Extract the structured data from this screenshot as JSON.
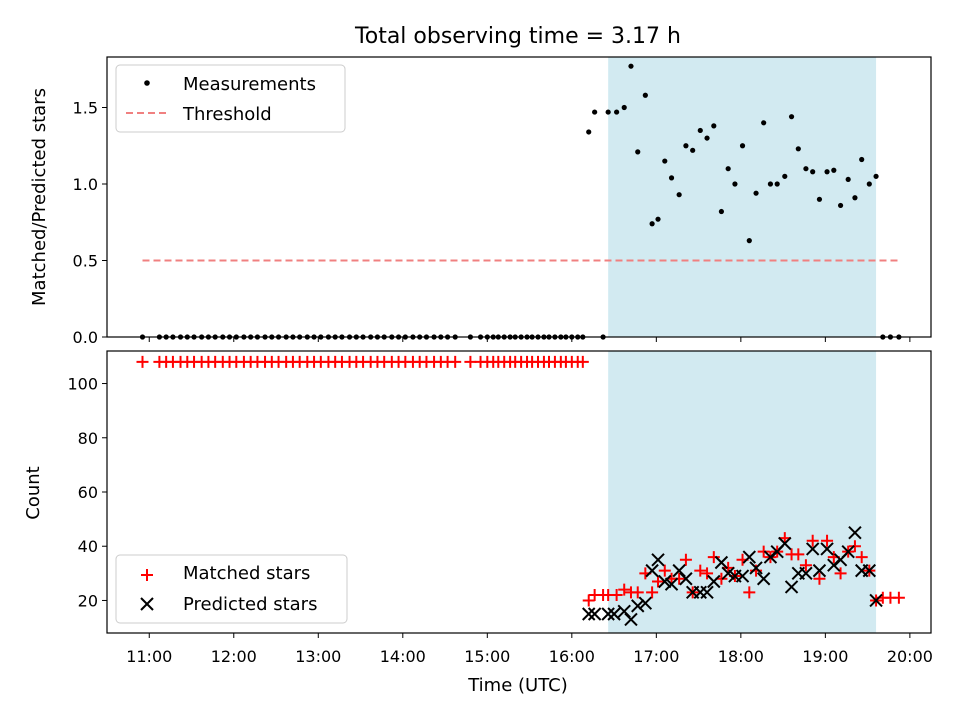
{
  "chart_data": [
    {
      "type": "scatter",
      "title": "Total observing time = 3.17 h",
      "xlabel": "",
      "ylabel": "Matched/Predicted stars",
      "xlim_hours": [
        10.5,
        20.25
      ],
      "ylim": [
        0,
        1.83
      ],
      "yticks": [
        "0.0",
        "0.5",
        "1.0",
        "1.5"
      ],
      "ytick_values": [
        0,
        0.5,
        1.0,
        1.5
      ],
      "shaded_span_hours": [
        16.43,
        19.6
      ],
      "legend_position": "upper-left",
      "series": [
        {
          "name": "Measurements",
          "color": "#000000",
          "marker": "dot",
          "x_hours": [
            10.92,
            11.12,
            11.2,
            11.28,
            11.37,
            11.45,
            11.53,
            11.62,
            11.7,
            11.78,
            11.87,
            11.95,
            12.03,
            12.12,
            12.2,
            12.28,
            12.37,
            12.45,
            12.53,
            12.62,
            12.7,
            12.78,
            12.87,
            12.95,
            13.03,
            13.12,
            13.2,
            13.28,
            13.37,
            13.45,
            13.53,
            13.62,
            13.7,
            13.78,
            13.87,
            13.95,
            14.03,
            14.12,
            14.2,
            14.28,
            14.37,
            14.45,
            14.53,
            14.62,
            14.8,
            14.92,
            15.0,
            15.07,
            15.13,
            15.2,
            15.27,
            15.33,
            15.4,
            15.47,
            15.53,
            15.6,
            15.67,
            15.73,
            15.8,
            15.87,
            15.93,
            16.0,
            16.07,
            16.13,
            16.2,
            16.27,
            16.37,
            16.43,
            16.53,
            16.62,
            16.7,
            16.78,
            16.87,
            16.95,
            17.02,
            17.1,
            17.18,
            17.27,
            17.35,
            17.43,
            17.52,
            17.6,
            17.68,
            17.77,
            17.85,
            17.93,
            18.02,
            18.1,
            18.18,
            18.27,
            18.35,
            18.43,
            18.52,
            18.6,
            18.68,
            18.77,
            18.85,
            18.93,
            19.02,
            19.1,
            19.18,
            19.27,
            19.35,
            19.43,
            19.52,
            19.6,
            19.68,
            19.77,
            19.87
          ],
          "y": [
            0,
            0,
            0,
            0,
            0,
            0,
            0,
            0,
            0,
            0,
            0,
            0,
            0,
            0,
            0,
            0,
            0,
            0,
            0,
            0,
            0,
            0,
            0,
            0,
            0,
            0,
            0,
            0,
            0,
            0,
            0,
            0,
            0,
            0,
            0,
            0,
            0,
            0,
            0,
            0,
            0,
            0,
            0,
            0,
            0,
            0,
            0,
            0,
            0,
            0,
            0,
            0,
            0,
            0,
            0,
            0,
            0,
            0,
            0,
            0,
            0,
            0,
            0,
            0,
            1.34,
            1.47,
            0,
            1.47,
            1.47,
            1.5,
            1.77,
            1.21,
            1.58,
            0.74,
            0.77,
            1.15,
            1.04,
            0.93,
            1.25,
            1.22,
            1.35,
            1.3,
            1.38,
            0.82,
            1.1,
            1.0,
            1.25,
            0.63,
            0.94,
            1.4,
            1.0,
            1.0,
            1.05,
            1.44,
            1.23,
            1.1,
            1.08,
            0.9,
            1.08,
            1.09,
            0.86,
            1.03,
            0.91,
            1.16,
            1.0,
            1.05,
            0,
            0,
            0
          ]
        },
        {
          "name": "Threshold",
          "color": "#f08080",
          "style": "dashed",
          "x_hours": [
            10.92,
            19.87
          ],
          "y": [
            0.5,
            0.5
          ]
        }
      ]
    },
    {
      "type": "scatter",
      "title": "",
      "xlabel": "Time (UTC)",
      "ylabel": "Count",
      "xlim_hours": [
        10.5,
        20.25
      ],
      "ylim": [
        8,
        112
      ],
      "yticks": [
        "20",
        "40",
        "60",
        "80",
        "100"
      ],
      "ytick_values": [
        20,
        40,
        60,
        80,
        100
      ],
      "xticks": [
        "11:00",
        "12:00",
        "13:00",
        "14:00",
        "15:00",
        "16:00",
        "17:00",
        "18:00",
        "19:00",
        "20:00"
      ],
      "xtick_values_hours": [
        11,
        12,
        13,
        14,
        15,
        16,
        17,
        18,
        19,
        20
      ],
      "shaded_span_hours": [
        16.43,
        19.6
      ],
      "legend_position": "lower-left",
      "series": [
        {
          "name": "Matched stars",
          "color": "#ff0000",
          "marker": "plus",
          "x_hours": [
            10.92,
            11.12,
            11.2,
            11.28,
            11.37,
            11.45,
            11.53,
            11.62,
            11.7,
            11.78,
            11.87,
            11.95,
            12.03,
            12.12,
            12.2,
            12.28,
            12.37,
            12.45,
            12.53,
            12.62,
            12.7,
            12.78,
            12.87,
            12.95,
            13.03,
            13.12,
            13.2,
            13.28,
            13.37,
            13.45,
            13.53,
            13.62,
            13.7,
            13.78,
            13.87,
            13.95,
            14.03,
            14.12,
            14.2,
            14.28,
            14.37,
            14.45,
            14.53,
            14.62,
            14.8,
            14.92,
            15.0,
            15.07,
            15.13,
            15.2,
            15.27,
            15.33,
            15.4,
            15.47,
            15.53,
            15.6,
            15.67,
            15.73,
            15.8,
            15.87,
            15.93,
            16.0,
            16.07,
            16.13,
            16.2,
            16.27,
            16.37,
            16.43,
            16.53,
            16.62,
            16.7,
            16.78,
            16.87,
            16.95,
            17.02,
            17.1,
            17.18,
            17.27,
            17.35,
            17.43,
            17.52,
            17.6,
            17.68,
            17.77,
            17.85,
            17.93,
            18.02,
            18.1,
            18.18,
            18.27,
            18.35,
            18.43,
            18.52,
            18.6,
            18.68,
            18.77,
            18.85,
            18.93,
            19.02,
            19.1,
            19.18,
            19.27,
            19.35,
            19.43,
            19.52,
            19.6,
            19.68,
            19.77,
            19.87
          ],
          "y": [
            108,
            108,
            108,
            108,
            108,
            108,
            108,
            108,
            108,
            108,
            108,
            108,
            108,
            108,
            108,
            108,
            108,
            108,
            108,
            108,
            108,
            108,
            108,
            108,
            108,
            108,
            108,
            108,
            108,
            108,
            108,
            108,
            108,
            108,
            108,
            108,
            108,
            108,
            108,
            108,
            108,
            108,
            108,
            108,
            108,
            108,
            108,
            108,
            108,
            108,
            108,
            108,
            108,
            108,
            108,
            108,
            108,
            108,
            108,
            108,
            108,
            108,
            108,
            108,
            20,
            22,
            22,
            22,
            22,
            24,
            23,
            23,
            30,
            23,
            27,
            31,
            28,
            28,
            35,
            23,
            31,
            30,
            36,
            28,
            32,
            29,
            35,
            23,
            31,
            38,
            36,
            38,
            43,
            37,
            37,
            33,
            42,
            28,
            42,
            36,
            30,
            38,
            40,
            36,
            31,
            20,
            21,
            21,
            21
          ]
        },
        {
          "name": "Predicted stars",
          "color": "#000000",
          "marker": "x",
          "x_hours": [
            16.2,
            16.27,
            16.43,
            16.5,
            16.62,
            16.7,
            16.78,
            16.87,
            16.95,
            17.02,
            17.1,
            17.18,
            17.27,
            17.35,
            17.43,
            17.52,
            17.6,
            17.68,
            17.77,
            17.85,
            17.93,
            18.02,
            18.1,
            18.18,
            18.27,
            18.35,
            18.43,
            18.52,
            18.6,
            18.68,
            18.77,
            18.85,
            18.93,
            19.02,
            19.1,
            19.18,
            19.27,
            19.35,
            19.43,
            19.52,
            19.6
          ],
          "y": [
            15,
            15,
            15,
            15,
            16,
            13,
            18,
            19,
            31,
            35,
            27,
            26,
            31,
            28,
            23,
            23,
            23,
            27,
            34,
            30,
            29,
            29,
            36,
            32,
            28,
            36,
            38,
            41,
            25,
            30,
            30,
            39,
            31,
            39,
            33,
            35,
            38,
            45,
            31,
            31,
            20
          ]
        }
      ]
    }
  ]
}
